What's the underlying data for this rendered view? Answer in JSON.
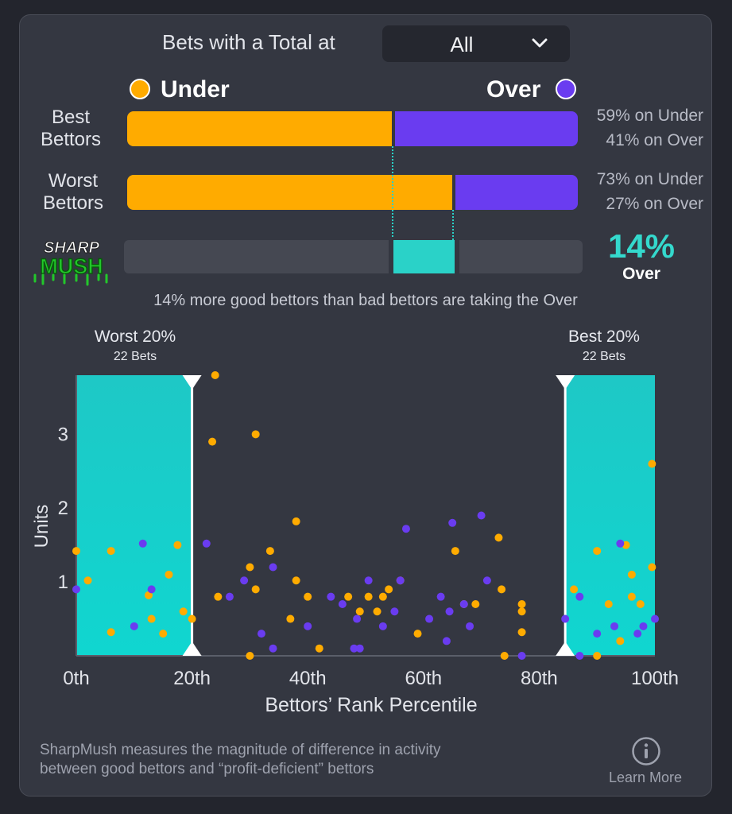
{
  "filter": {
    "label": "Bets with a Total at",
    "selected": "All"
  },
  "legend": {
    "under": "Under",
    "over": "Over"
  },
  "colors": {
    "under": "#ffab00",
    "over": "#6a3cf0",
    "teal": "#2ad2c8"
  },
  "best": {
    "label_line1": "Best",
    "label_line2": "Bettors",
    "under_pct": 59,
    "over_pct": 41,
    "under_text": "59% on Under",
    "over_text": "41% on Over"
  },
  "worst": {
    "label_line1": "Worst",
    "label_line2": "Bettors",
    "under_pct": 73,
    "over_pct": 27,
    "under_text": "73% on Under",
    "over_text": "27% on Over"
  },
  "logo": {
    "line1": "SHARP",
    "line2": "MUSH"
  },
  "sharp": {
    "value": "14%",
    "side": "Over",
    "summary": "14% more good bettors than bad bettors are taking the Over"
  },
  "zones": {
    "worst": {
      "title": "Worst 20%",
      "sub": "22 Bets"
    },
    "best": {
      "title": "Best 20%",
      "sub": "22 Bets"
    }
  },
  "chart_data": {
    "type": "scatter",
    "xlabel": "Bettors’ Rank Percentile",
    "ylabel": "Units",
    "xlim": [
      0,
      100
    ],
    "ylim": [
      0,
      3.8
    ],
    "x_ticks": [
      "0th",
      "20th",
      "40th",
      "60th",
      "80th",
      "100th"
    ],
    "y_ticks": [
      "1",
      "2",
      "3"
    ],
    "shaded_ranges": [
      [
        0,
        20
      ],
      [
        84.5,
        100
      ]
    ],
    "series": [
      {
        "name": "Under",
        "color": "#ffab00",
        "points": [
          [
            0,
            1.42
          ],
          [
            2,
            1.02
          ],
          [
            6,
            0.32
          ],
          [
            6,
            1.42
          ],
          [
            12.5,
            0.82
          ],
          [
            13,
            0.5
          ],
          [
            15,
            0.3
          ],
          [
            16,
            1.1
          ],
          [
            17.5,
            1.5
          ],
          [
            18.5,
            0.6
          ],
          [
            20,
            0.5
          ],
          [
            23.5,
            2.9
          ],
          [
            24,
            3.8
          ],
          [
            24.5,
            0.8
          ],
          [
            30,
            1.2
          ],
          [
            30,
            0
          ],
          [
            31,
            0.9
          ],
          [
            31,
            3.0
          ],
          [
            33.5,
            1.42
          ],
          [
            37,
            0.5
          ],
          [
            38,
            1.02
          ],
          [
            38,
            1.82
          ],
          [
            40,
            0.8
          ],
          [
            42,
            0.1
          ],
          [
            47,
            0.8
          ],
          [
            49,
            0.6
          ],
          [
            50.5,
            0.8
          ],
          [
            52,
            0.6
          ],
          [
            53,
            0.8
          ],
          [
            54,
            0.9
          ],
          [
            56,
            1.02
          ],
          [
            59,
            0.3
          ],
          [
            65.5,
            1.42
          ],
          [
            67,
            0.7
          ],
          [
            69,
            0.7
          ],
          [
            73,
            1.6
          ],
          [
            73.5,
            0.9
          ],
          [
            74,
            0
          ],
          [
            77,
            0.7
          ],
          [
            77,
            0.6
          ],
          [
            77,
            0.32
          ],
          [
            86,
            0.9
          ],
          [
            90,
            1.42
          ],
          [
            90,
            0
          ],
          [
            92,
            0.7
          ],
          [
            94,
            0.2
          ],
          [
            95,
            1.5
          ],
          [
            96,
            1.1
          ],
          [
            96,
            0.8
          ],
          [
            97.5,
            0.7
          ],
          [
            99.5,
            1.2
          ],
          [
            99.5,
            2.6
          ]
        ]
      },
      {
        "name": "Over",
        "color": "#6a3cf0",
        "points": [
          [
            0,
            0.9
          ],
          [
            10,
            0.4
          ],
          [
            11.5,
            1.52
          ],
          [
            13,
            0.9
          ],
          [
            22.5,
            1.52
          ],
          [
            26.5,
            0.8
          ],
          [
            29,
            1.02
          ],
          [
            32,
            0.3
          ],
          [
            34,
            0.1
          ],
          [
            34,
            1.2
          ],
          [
            40,
            0.4
          ],
          [
            44,
            0.8
          ],
          [
            46,
            0.7
          ],
          [
            48,
            0.1
          ],
          [
            48.5,
            0.5
          ],
          [
            49,
            0.1
          ],
          [
            50.5,
            1.02
          ],
          [
            53,
            0.4
          ],
          [
            55,
            0.6
          ],
          [
            56,
            1.02
          ],
          [
            57,
            1.72
          ],
          [
            61,
            0.5
          ],
          [
            63,
            0.8
          ],
          [
            64,
            0.2
          ],
          [
            64.5,
            0.6
          ],
          [
            65,
            1.8
          ],
          [
            67,
            0.7
          ],
          [
            68,
            0.4
          ],
          [
            70,
            1.9
          ],
          [
            71,
            1.02
          ],
          [
            77,
            0
          ],
          [
            84.5,
            0.5
          ],
          [
            87,
            0.8
          ],
          [
            87,
            0
          ],
          [
            90,
            0.3
          ],
          [
            93,
            0.4
          ],
          [
            94,
            1.52
          ],
          [
            97,
            0.3
          ],
          [
            98,
            0.4
          ],
          [
            100,
            0.5
          ]
        ]
      }
    ]
  },
  "footer": {
    "line1": "SharpMush measures the magnitude of difference in activity",
    "line2": "between good bettors and “profit-deficient” bettors"
  },
  "learn_more": {
    "label": "Learn More",
    "icon": "info-icon"
  }
}
